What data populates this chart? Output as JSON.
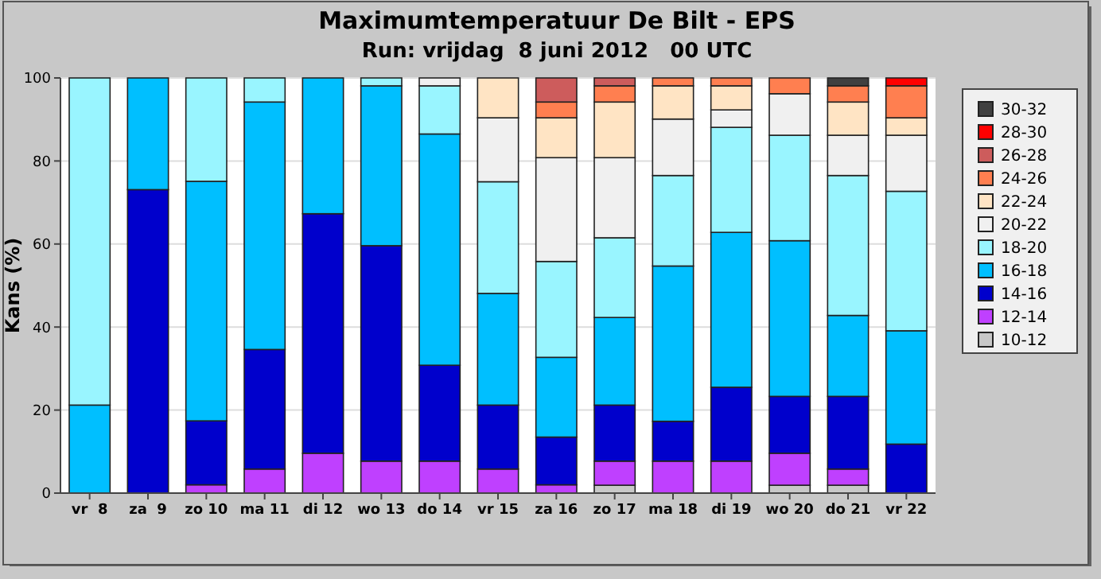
{
  "chart_data": {
    "type": "bar",
    "stacked": true,
    "title": "Maximumtemperatuur De Bilt - EPS",
    "subtitle": "Run: vrijdag  8 juni 2012   00 UTC",
    "ylabel": "Kans (%)",
    "categories": [
      "vr  8",
      "za  9",
      "zo 10",
      "ma 11",
      "di 12",
      "wo 13",
      "do 14",
      "vr 15",
      "za 16",
      "zo 17",
      "ma 18",
      "di 19",
      "wo 20",
      "do 21",
      "vr 22"
    ],
    "ylim": [
      0,
      100
    ],
    "yticks": [
      0,
      20,
      40,
      60,
      80,
      100
    ],
    "grid": "y",
    "legend": "right",
    "series": [
      {
        "name": "10-12",
        "color": "#c8c8c8",
        "values": [
          0,
          0,
          0,
          0,
          0,
          0,
          0,
          0,
          0,
          1.9,
          0,
          0,
          1.9,
          1.9,
          0
        ]
      },
      {
        "name": "12-14",
        "color": "#bf40ff",
        "values": [
          0,
          0,
          2,
          5.8,
          9.6,
          7.7,
          7.7,
          5.8,
          2,
          5.8,
          7.7,
          7.7,
          7.7,
          3.9,
          0
        ]
      },
      {
        "name": "14-16",
        "color": "#0000cc",
        "values": [
          0,
          73.1,
          15.4,
          28.8,
          57.7,
          51.9,
          23.1,
          15.4,
          11.5,
          13.5,
          9.6,
          17.8,
          13.7,
          17.5,
          11.8
        ]
      },
      {
        "name": "16-18",
        "color": "#00bfff",
        "values": [
          21.2,
          26.9,
          57.7,
          59.6,
          32.7,
          38.5,
          55.7,
          26.9,
          19.2,
          21.1,
          37.4,
          37.3,
          37.5,
          19.5,
          27.3
        ]
      },
      {
        "name": "18-20",
        "color": "#99f5ff",
        "values": [
          78.8,
          0,
          24.9,
          5.8,
          0,
          1.9,
          11.6,
          26.9,
          23.1,
          19.2,
          21.8,
          25.3,
          25.4,
          33.7,
          33.6
        ]
      },
      {
        "name": "20-22",
        "color": "#f0f0f0",
        "values": [
          0,
          0,
          0,
          0,
          0,
          0,
          1.9,
          15.4,
          25,
          19.3,
          13.6,
          4.2,
          10,
          9.7,
          13.5
        ]
      },
      {
        "name": "22-24",
        "color": "#ffe4c4",
        "values": [
          0,
          0,
          0,
          0,
          0,
          0,
          0,
          9.6,
          9.6,
          13.4,
          8,
          5.8,
          0,
          8,
          4.2
        ]
      },
      {
        "name": "24-26",
        "color": "#ff7f50",
        "values": [
          0,
          0,
          0,
          0,
          0,
          0,
          0,
          0,
          3.8,
          3.9,
          1.9,
          1.9,
          3.8,
          3.9,
          7.7
        ]
      },
      {
        "name": "26-28",
        "color": "#cd5c5c",
        "values": [
          0,
          0,
          0,
          0,
          0,
          0,
          0,
          0,
          5.8,
          1.9,
          0,
          0,
          0,
          0,
          0
        ]
      },
      {
        "name": "28-30",
        "color": "#ff0000",
        "values": [
          0,
          0,
          0,
          0,
          0,
          0,
          0,
          0,
          0,
          0,
          0,
          0,
          0,
          0,
          1.9
        ]
      },
      {
        "name": "30-32",
        "color": "#404040",
        "values": [
          0,
          0,
          0,
          0,
          0,
          0,
          0,
          0,
          0,
          0,
          0,
          0,
          0,
          1.9,
          0
        ]
      }
    ]
  }
}
